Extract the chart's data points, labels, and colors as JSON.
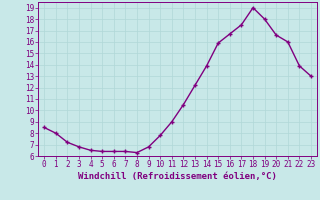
{
  "x": [
    0,
    1,
    2,
    3,
    4,
    5,
    6,
    7,
    8,
    9,
    10,
    11,
    12,
    13,
    14,
    15,
    16,
    17,
    18,
    19,
    20,
    21,
    22,
    23
  ],
  "y": [
    8.5,
    8.0,
    7.2,
    6.8,
    6.5,
    6.4,
    6.4,
    6.4,
    6.3,
    6.8,
    7.8,
    9.0,
    10.5,
    12.2,
    13.9,
    15.9,
    16.7,
    17.5,
    19.0,
    18.0,
    16.6,
    16.0,
    13.9,
    13.0
  ],
  "line_color": "#800080",
  "marker": "+",
  "bg_color": "#c8e8e8",
  "grid_color": "#b0d8d8",
  "xlabel": "Windchill (Refroidissement éolien,°C)",
  "ylim": [
    6,
    19.5
  ],
  "xlim": [
    -0.5,
    23.5
  ],
  "yticks": [
    6,
    7,
    8,
    9,
    10,
    11,
    12,
    13,
    14,
    15,
    16,
    17,
    18,
    19
  ],
  "xticks": [
    0,
    1,
    2,
    3,
    4,
    5,
    6,
    7,
    8,
    9,
    10,
    11,
    12,
    13,
    14,
    15,
    16,
    17,
    18,
    19,
    20,
    21,
    22,
    23
  ],
  "tick_color": "#800080",
  "label_fontsize": 6.5,
  "tick_fontsize": 5.5,
  "spine_color": "#800080",
  "line_width": 1.0,
  "marker_size": 3.5,
  "marker_edge_width": 1.0
}
